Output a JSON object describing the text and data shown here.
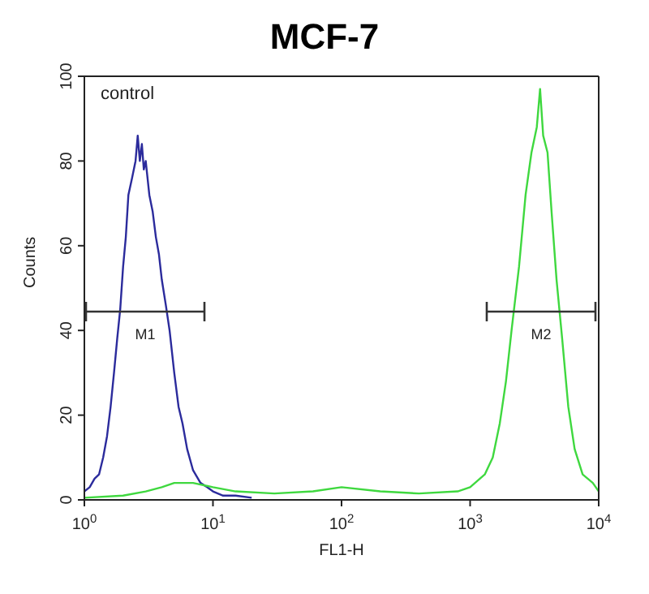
{
  "chart_data": {
    "type": "line",
    "title": "MCF-7",
    "xlabel": "FL1-H",
    "ylabel": "Counts",
    "log": "x",
    "xlim": [
      1,
      10000
    ],
    "xticks": [
      {
        "value": 1,
        "label": "10$^{0}$"
      },
      {
        "value": 10,
        "label": "10$^{1}$"
      },
      {
        "value": 100,
        "label": "10$^{2}$"
      },
      {
        "value": 1000,
        "label": "10$^{3}$"
      },
      {
        "value": 10000,
        "label": "10$^{4}$"
      }
    ],
    "ylim": [
      0,
      100
    ],
    "yticks": [
      0,
      20,
      40,
      60,
      80,
      100
    ],
    "marker": "none",
    "line_style": "solid",
    "annotations": [
      "control",
      "M1",
      "M2"
    ],
    "series": [
      {
        "color": "#2b2b9c",
        "x": [
          1,
          1.1,
          1.2,
          1.3,
          1.4,
          1.5,
          1.6,
          1.7,
          1.8,
          1.9,
          2,
          2.1,
          2.2,
          2.35,
          2.5,
          2.6,
          2.7,
          2.8,
          2.9,
          3,
          3.2,
          3.4,
          3.6,
          3.8,
          4,
          4.3,
          4.6,
          5,
          5.4,
          5.8,
          6.3,
          7,
          8,
          9,
          10,
          12,
          15,
          20
        ],
        "values": [
          2,
          3,
          5,
          6,
          10,
          15,
          22,
          30,
          38,
          45,
          55,
          62,
          72,
          76,
          80,
          86,
          80,
          84,
          78,
          80,
          72,
          68,
          62,
          58,
          52,
          46,
          40,
          30,
          22,
          18,
          12,
          7,
          4,
          3,
          2,
          1,
          1,
          0.5
        ]
      },
      {
        "color": "#3fd83f",
        "x": [
          1,
          2,
          3,
          4,
          5,
          7,
          10,
          15,
          30,
          60,
          100,
          200,
          400,
          800,
          1000,
          1300,
          1500,
          1700,
          1900,
          2100,
          2400,
          2700,
          3000,
          3300,
          3500,
          3700,
          4000,
          4300,
          4700,
          5200,
          5800,
          6500,
          7500,
          9000,
          10000
        ],
        "values": [
          0.5,
          1,
          2,
          3,
          4,
          4,
          3,
          2,
          1.5,
          2,
          3,
          2,
          1.5,
          2,
          3,
          6,
          10,
          18,
          28,
          40,
          55,
          72,
          82,
          88,
          97,
          86,
          82,
          68,
          52,
          38,
          22,
          12,
          6,
          4,
          2
        ]
      }
    ]
  }
}
